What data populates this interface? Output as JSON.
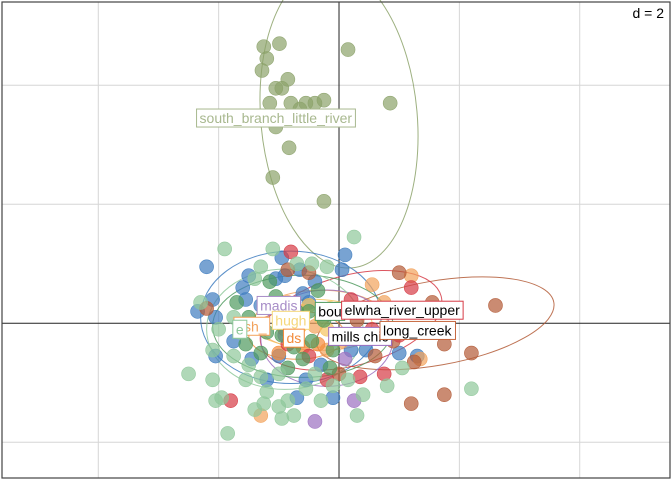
{
  "chart_data": {
    "type": "scatter",
    "title": "",
    "scale_label": "d = 2",
    "xlim": [
      -5.6,
      5.5
    ],
    "ylim": [
      -2.6,
      5.4
    ],
    "grid_step": 2,
    "grid": true,
    "series": [
      {
        "name": "south_branch_little_river",
        "color": "#8ca26a",
        "label_color": "#a8b88f",
        "center": [
          0,
          3.45
        ],
        "ellipse": {
          "rx": 1.3,
          "ry": 2.5,
          "angle": -5
        },
        "points": [
          [
            -1.25,
            4.65
          ],
          [
            -1.2,
            4.45
          ],
          [
            -0.99,
            4.7
          ],
          [
            -0.85,
            4.1
          ],
          [
            -1.28,
            4.25
          ],
          [
            -1.05,
            3.95
          ],
          [
            -0.8,
            3.7
          ],
          [
            -1.15,
            3.7
          ],
          [
            -0.95,
            3.95
          ],
          [
            -0.65,
            3.6
          ],
          [
            -0.55,
            3.7
          ],
          [
            -0.25,
            3.75
          ],
          [
            -0.4,
            3.7
          ],
          [
            -1.05,
            3.3
          ],
          [
            -0.83,
            2.95
          ],
          [
            0.15,
            4.6
          ],
          [
            0.85,
            3.7
          ],
          [
            -1.1,
            2.45
          ],
          [
            -0.25,
            2.05
          ]
        ]
      },
      {
        "name": "madis",
        "color": "#3e7cbf",
        "label_color": "#a78dc7",
        "center": [
          -0.8,
          0.1
        ],
        "ellipse": {
          "rx": 1.5,
          "ry": 1.1,
          "angle": 0
        },
        "points": [
          [
            -2.2,
            0.95
          ],
          [
            -2.1,
            0.4
          ],
          [
            -2.35,
            0.2
          ],
          [
            -2.05,
            0.1
          ],
          [
            -1.55,
            0.4
          ],
          [
            -0.95,
            1.1
          ],
          [
            -0.9,
            0.8
          ],
          [
            -0.6,
            0.5
          ],
          [
            0.1,
            1.15
          ],
          [
            -0.4,
            0.7
          ],
          [
            -1.05,
            0.75
          ],
          [
            -1.6,
            0.6
          ],
          [
            -1.3,
            0.3
          ],
          [
            0.05,
            0.9
          ],
          [
            -1.5,
            0.8
          ],
          [
            -1.75,
            -0.3
          ],
          [
            -2.05,
            -0.55
          ],
          [
            -1.0,
            -0.55
          ],
          [
            -1.45,
            -0.6
          ],
          [
            -0.7,
            -0.1
          ],
          [
            -0.3,
            -0.7
          ],
          [
            -0.65,
            0.9
          ],
          [
            -1.2,
            -0.95
          ],
          [
            -0.7,
            -1.25
          ],
          [
            -0.55,
            -0.95
          ],
          [
            -0.1,
            -1.25
          ],
          [
            0.2,
            -0.45
          ],
          [
            0.45,
            -0.45
          ],
          [
            1.0,
            -0.5
          ],
          [
            1.3,
            -0.55
          ],
          [
            -0.5,
            0.35
          ]
        ]
      },
      {
        "name": "fish",
        "color": "#f2a25b",
        "label_color": "#f2a25b",
        "center": [
          -0.3,
          0.05
        ],
        "ellipse": {
          "rx": 1.1,
          "ry": 0.5,
          "angle": 0
        },
        "points": [
          [
            0.05,
            -0.3
          ],
          [
            -0.6,
            0.2
          ],
          [
            1.2,
            0.8
          ],
          [
            1.35,
            -0.6
          ],
          [
            -1.3,
            -1.55
          ],
          [
            0.55,
            0.65
          ],
          [
            -0.2,
            -0.45
          ],
          [
            -0.85,
            0.35
          ],
          [
            0.75,
            0.35
          ],
          [
            -0.4,
            -0.05
          ]
        ]
      },
      {
        "name": "hugh",
        "color": "#f5c35e",
        "label_color": "#f5d77a",
        "center": [
          -0.45,
          0.0
        ],
        "ellipse": {
          "rx": 1.0,
          "ry": 0.4,
          "angle": 0
        },
        "points": [
          [
            -0.3,
            0.1
          ],
          [
            -0.65,
            -0.05
          ],
          [
            -0.15,
            0.25
          ],
          [
            -0.5,
            0.3
          ],
          [
            -0.8,
            0.05
          ],
          [
            -0.2,
            -0.1
          ]
        ]
      },
      {
        "name": "ds",
        "color": "#f38a3a",
        "label_color": "#f38a3a",
        "center": [
          -0.7,
          -0.2
        ],
        "ellipse": {
          "rx": 0.8,
          "ry": 0.4,
          "angle": 0
        },
        "points": [
          [
            -0.6,
            -0.4
          ],
          [
            -0.9,
            -0.1
          ],
          [
            -0.35,
            -0.35
          ],
          [
            -1.0,
            -0.5
          ]
        ]
      },
      {
        "name": "long_creek",
        "color": "#b35a36",
        "label_color": "#c6673e",
        "center": [
          1.6,
          0.0
        ],
        "ellipse": {
          "rx": 2.0,
          "ry": 0.7,
          "angle": -10
        },
        "points": [
          [
            -2.2,
            0.25
          ],
          [
            -0.85,
            0.9
          ],
          [
            1.0,
            0.85
          ],
          [
            1.55,
            0.35
          ],
          [
            2.6,
            0.3
          ],
          [
            2.2,
            -0.5
          ],
          [
            1.75,
            -0.35
          ],
          [
            1.25,
            -0.65
          ],
          [
            0.6,
            -0.55
          ],
          [
            0.0,
            -0.85
          ],
          [
            1.2,
            -1.35
          ],
          [
            1.75,
            -1.2
          ],
          [
            0.9,
            -0.3
          ],
          [
            0.3,
            0.05
          ],
          [
            -0.5,
            0.85
          ]
        ]
      },
      {
        "name": "elwha_river_upper",
        "color": "#d63a45",
        "label_color": "#d63a45",
        "center": [
          0.2,
          0.05
        ],
        "ellipse": {
          "rx": 1.55,
          "ry": 0.75,
          "angle": -15
        },
        "points": [
          [
            -0.8,
            1.2
          ],
          [
            1.0,
            -0.2
          ],
          [
            0.75,
            -0.85
          ],
          [
            -1.8,
            -1.3
          ],
          [
            0.35,
            -0.9
          ],
          [
            -0.2,
            -0.95
          ],
          [
            -0.85,
            -0.35
          ],
          [
            0.2,
            0.4
          ],
          [
            -0.5,
            -0.55
          ],
          [
            1.2,
            0.6
          ],
          [
            0.55,
            -0.1
          ]
        ]
      },
      {
        "name": "mills chic",
        "color": "#9b6fc0",
        "label_color": "#9b6fc0",
        "center": [
          -0.2,
          -0.25
        ],
        "ellipse": {
          "rx": 1.1,
          "ry": 0.8,
          "angle": 0
        },
        "points": [
          [
            -0.4,
            -1.65
          ],
          [
            0.25,
            -1.3
          ],
          [
            -0.9,
            -0.2
          ],
          [
            0.1,
            -0.6
          ]
        ]
      },
      {
        "name": "bou",
        "color": "#4f9a5e",
        "label_color": "#4f9a5e",
        "center": [
          -0.6,
          -0.05
        ],
        "ellipse": {
          "rx": 1.5,
          "ry": 0.85,
          "angle": 0
        },
        "points": [
          [
            -1.5,
            0.1
          ],
          [
            -1.2,
            -0.15
          ],
          [
            -0.95,
            -0.2
          ],
          [
            -0.7,
            0.2
          ],
          [
            -0.45,
            -0.3
          ],
          [
            -0.25,
            0.05
          ],
          [
            -1.05,
            0.45
          ],
          [
            -0.6,
            -0.6
          ],
          [
            -1.3,
            -0.5
          ],
          [
            -0.1,
            -0.45
          ],
          [
            0.1,
            0.25
          ],
          [
            -0.35,
            0.55
          ],
          [
            -1.55,
            -0.35
          ],
          [
            -0.85,
            -0.75
          ],
          [
            0.25,
            -0.2
          ],
          [
            -1.7,
            0.35
          ],
          [
            -0.5,
            0.2
          ],
          [
            -0.15,
            -0.75
          ],
          [
            -1.15,
            0.7
          ],
          [
            -0.75,
            -0.4
          ]
        ]
      },
      {
        "name": "elwha",
        "color": "#8ec89a",
        "label_color": "#8ec89a",
        "center": [
          -0.9,
          -0.1
        ],
        "ellipse": {
          "rx": 1.3,
          "ry": 1.0,
          "angle": 0
        },
        "points": [
          [
            0.25,
            1.45
          ],
          [
            -1.4,
            0.75
          ],
          [
            -1.75,
            -0.55
          ],
          [
            -2.5,
            -0.85
          ],
          [
            -2.1,
            -0.95
          ],
          [
            -1.95,
            -1.25
          ],
          [
            -2.05,
            -1.3
          ],
          [
            -1.85,
            -1.85
          ],
          [
            -1.55,
            -0.95
          ],
          [
            -1.2,
            -1.15
          ],
          [
            -0.85,
            -1.3
          ],
          [
            -0.55,
            -1.1
          ],
          [
            -0.3,
            -1.3
          ],
          [
            -0.1,
            -1.05
          ],
          [
            0.15,
            -0.95
          ],
          [
            0.4,
            -1.2
          ],
          [
            0.8,
            -1.05
          ],
          [
            0.3,
            -1.55
          ],
          [
            -0.75,
            -1.55
          ],
          [
            -1.0,
            -1.4
          ],
          [
            2.2,
            -1.1
          ],
          [
            1.05,
            -0.75
          ],
          [
            -2.3,
            0.35
          ],
          [
            -1.75,
            0.1
          ],
          [
            -2.0,
            -0.1
          ],
          [
            -1.5,
            -0.7
          ],
          [
            -1.3,
            -0.9
          ],
          [
            -1.0,
            -0.85
          ],
          [
            -0.4,
            -0.85
          ],
          [
            -1.4,
            -1.45
          ],
          [
            -1.25,
            -1.35
          ],
          [
            -0.95,
            -1.6
          ],
          [
            -2.1,
            -0.45
          ],
          [
            -1.65,
            -0.15
          ],
          [
            -1.9,
            1.25
          ],
          [
            -1.1,
            1.25
          ],
          [
            -0.45,
            1.0
          ],
          [
            -0.2,
            0.95
          ],
          [
            -1.3,
            0.95
          ],
          [
            -0.7,
            1.0
          ]
        ]
      }
    ],
    "labels": [
      {
        "text": "south_branch_little_river",
        "series": "south_branch_little_river",
        "x": -1.05,
        "y": 3.45
      },
      {
        "text": "madis",
        "series": "madis",
        "x": -1.0,
        "y": 0.3
      },
      {
        "text": "bou",
        "series": "bou",
        "x": -0.15,
        "y": 0.2
      },
      {
        "text": "elwha_river_upper",
        "series": "elwha_river_upper",
        "x": 1.05,
        "y": 0.22
      },
      {
        "text": "fish_",
        "series": "fish",
        "x": -1.45,
        "y": -0.05
      },
      {
        "text": "hugh",
        "series": "hugh",
        "x": -0.8,
        "y": 0.05
      },
      {
        "text": "e",
        "series": "elwha",
        "x": -1.65,
        "y": -0.1
      },
      {
        "text": "mills chic",
        "series": "mills chic",
        "x": 0.35,
        "y": -0.22
      },
      {
        "text": "ds",
        "series": "ds",
        "x": -0.75,
        "y": -0.25
      },
      {
        "text": "long_creek",
        "series": "long_creek",
        "x": 1.3,
        "y": -0.12
      }
    ]
  }
}
